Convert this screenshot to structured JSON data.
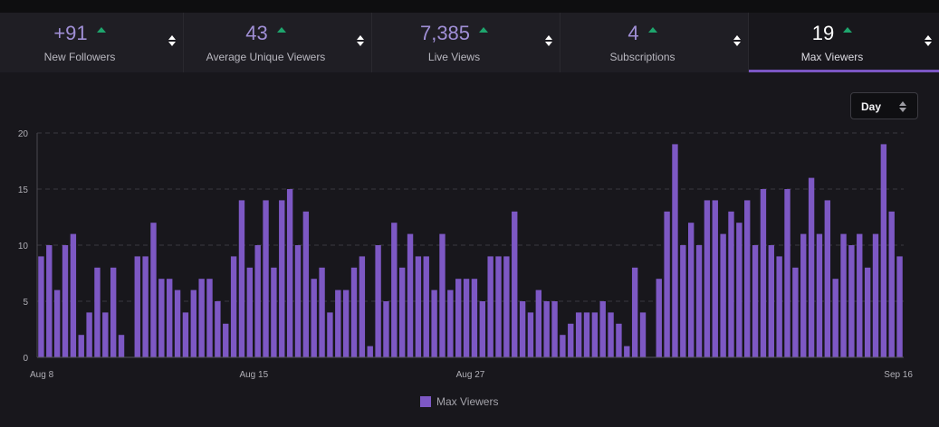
{
  "stats": [
    {
      "value": "+91",
      "label": "New Followers",
      "active": false
    },
    {
      "value": "43",
      "label": "Average Unique Viewers",
      "active": false
    },
    {
      "value": "7,385",
      "label": "Live Views",
      "active": false
    },
    {
      "value": "4",
      "label": "Subscriptions",
      "active": false
    },
    {
      "value": "19",
      "label": "Max Viewers",
      "active": true
    }
  ],
  "granularity": {
    "selected": "Day"
  },
  "colors": {
    "bar": "#7d58c4",
    "accent": "#7b57c3",
    "trend_up": "#1ea56d"
  },
  "icons": [
    "trend-up-icon",
    "sort-icon"
  ],
  "chart_data": {
    "type": "bar",
    "xlabel": "",
    "ylabel": "",
    "ylim": [
      0,
      20
    ],
    "y_ticks": [
      0,
      5,
      10,
      15,
      20
    ],
    "x_tick_labels": [
      "Aug 8",
      "Aug 15",
      "Aug 27",
      "Sep 16"
    ],
    "grid": true,
    "legend": "bottom-center",
    "series": [
      {
        "name": "Max Viewers",
        "values": [
          9,
          10,
          6,
          10,
          11,
          2,
          4,
          8,
          4,
          8,
          2,
          0,
          9,
          9,
          12,
          7,
          7,
          6,
          4,
          6,
          7,
          7,
          5,
          3,
          9,
          14,
          8,
          10,
          14,
          8,
          14,
          15,
          10,
          13,
          7,
          8,
          4,
          6,
          6,
          8,
          9,
          1,
          10,
          5,
          12,
          8,
          11,
          9,
          9,
          6,
          11,
          6,
          7,
          7,
          7,
          5,
          9,
          9,
          9,
          13,
          5,
          4,
          6,
          5,
          5,
          2,
          3,
          4,
          4,
          4,
          5,
          4,
          3,
          1,
          8,
          4,
          0,
          7,
          13,
          19,
          10,
          12,
          10,
          14,
          14,
          11,
          13,
          12,
          14,
          10,
          15,
          10,
          9,
          15,
          8,
          11,
          16,
          11,
          14,
          7,
          11,
          10,
          11,
          8,
          11,
          19,
          13,
          9
        ]
      }
    ]
  }
}
